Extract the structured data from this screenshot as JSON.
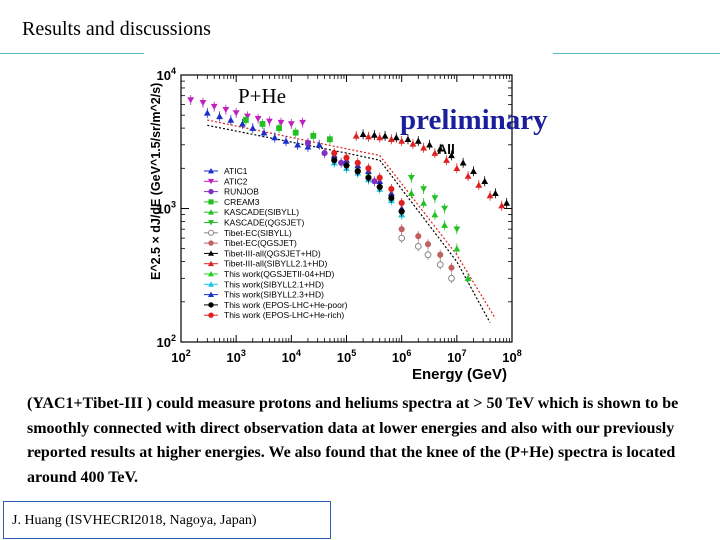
{
  "slide": {
    "title": "Results and discussions",
    "body": "(YAC1+Tibet-III ) could measure protons and heliums spectra at > 50 TeV which is shown to be smoothly connected with direct observation data at lower energies and also with our previously reported results at higher energies. We also found that the knee of the (P+He) spectra is located around 400 TeV.",
    "footer": "J. Huang (ISVHECRI2018, Nagoya, Japan)",
    "overlay_left": "P+He",
    "overlay_right": "preliminary"
  },
  "chart_data": {
    "type": "scatter",
    "xlabel": "Energy (GeV)",
    "ylabel": "E^2.5 × dJ/dE (GeV^1.5/sr/m^2/s)",
    "x_log": true,
    "y_log": true,
    "xlim": [
      100,
      100000000
    ],
    "ylim": [
      100,
      10000
    ],
    "xticks": [
      100,
      1000,
      10000,
      100000,
      1000000,
      10000000,
      100000000
    ],
    "xtick_labels": [
      "10^2",
      "10^3",
      "10^4",
      "10^5",
      "10^6",
      "10^7",
      "10^8"
    ],
    "yticks": [
      100,
      1000,
      10000
    ],
    "ytick_labels": [
      "10^2",
      "10^3",
      "10^4"
    ],
    "inner_label": "All",
    "legend": [
      {
        "name": "ATIC1",
        "color": "#1a2fc8",
        "marker": "triangle"
      },
      {
        "name": "ATIC2",
        "color": "#c020c0",
        "marker": "triangle-down"
      },
      {
        "name": "RUNJOB",
        "color": "#8030c0",
        "marker": "circle"
      },
      {
        "name": "CREAM3",
        "color": "#22c022",
        "marker": "square"
      },
      {
        "name": "KASCADE(SIBYLL)",
        "color": "#22c022",
        "marker": "triangle"
      },
      {
        "name": "KASCADE(QGSJET)",
        "color": "#22c022",
        "marker": "triangle-down"
      },
      {
        "name": "Tibet-EC(SIBYLL)",
        "color": "#888888",
        "marker": "circle-open"
      },
      {
        "name": "Tibet-EC(QGSJET)",
        "color": "#c06060",
        "marker": "circle"
      },
      {
        "name": "Tibet-III-all(QGSJET+HD)",
        "color": "#000000",
        "marker": "triangle"
      },
      {
        "name": "Tibet-III-all(SIBYLL2.1+HD)",
        "color": "#e02020",
        "marker": "triangle"
      },
      {
        "name": "This work(QGSJETII-04+HD)",
        "color": "#22d022",
        "marker": "triangle"
      },
      {
        "name": "This work(SIBYLL2.1+HD)",
        "color": "#20c8e8",
        "marker": "triangle"
      },
      {
        "name": "This work(SIBYLL2.3+HD)",
        "color": "#1a2fc8",
        "marker": "triangle"
      },
      {
        "name": "This work (EPOS-LHC+He-poor)",
        "color": "#000000",
        "marker": "circle"
      },
      {
        "name": "This work (EPOS-LHC+He-rich)",
        "color": "#e02020",
        "marker": "circle"
      }
    ],
    "series": [
      {
        "name": "ATIC1",
        "color": "#1a2fc8",
        "marker": "triangle",
        "x": [
          300,
          500,
          800,
          1300,
          2000,
          3200,
          5000,
          8000,
          13000,
          20000,
          32000
        ],
        "y": [
          5200,
          4900,
          4600,
          4300,
          4000,
          3700,
          3400,
          3200,
          3000,
          2900,
          3000
        ]
      },
      {
        "name": "ATIC2",
        "color": "#c020c0",
        "marker": "triangle-down",
        "x": [
          150,
          250,
          400,
          650,
          1000,
          1600,
          2500,
          4000,
          6500,
          10000,
          16000
        ],
        "y": [
          6500,
          6200,
          5800,
          5500,
          5200,
          4900,
          4700,
          4500,
          4400,
          4300,
          4400
        ]
      },
      {
        "name": "RUNJOB",
        "color": "#8030c0",
        "marker": "circle",
        "x": [
          20000,
          40000,
          80000,
          160000,
          320000
        ],
        "y": [
          3100,
          2600,
          2200,
          1900,
          1600
        ]
      },
      {
        "name": "CREAM3",
        "color": "#22c022",
        "marker": "square",
        "x": [
          1500,
          3000,
          6000,
          12000,
          25000,
          50000
        ],
        "y": [
          4600,
          4300,
          4000,
          3700,
          3500,
          3300
        ]
      },
      {
        "name": "KASCADE(SIBYLL)",
        "color": "#22c022",
        "marker": "triangle",
        "x": [
          1500000,
          2500000,
          4000000,
          6000000,
          10000000,
          16000000
        ],
        "y": [
          1300,
          1100,
          900,
          750,
          500,
          300
        ]
      },
      {
        "name": "KASCADE(QGSJET)",
        "color": "#22c022",
        "marker": "triangle-down",
        "x": [
          1500000,
          2500000,
          4000000,
          6000000,
          10000000
        ],
        "y": [
          1700,
          1400,
          1200,
          1000,
          700
        ]
      },
      {
        "name": "Tibet-EC(SIBYLL)",
        "color": "#888888",
        "marker": "circle-open",
        "x": [
          1000000,
          2000000,
          3000000,
          5000000,
          8000000
        ],
        "y": [
          600,
          520,
          450,
          380,
          300
        ]
      },
      {
        "name": "Tibet-EC(QGSJET)",
        "color": "#c06060",
        "marker": "circle",
        "x": [
          1000000,
          2000000,
          3000000,
          5000000,
          8000000
        ],
        "y": [
          700,
          620,
          540,
          450,
          360
        ]
      },
      {
        "name": "Tibet-III-all(QGSJET+HD)",
        "color": "#000000",
        "marker": "triangle",
        "x": [
          200000,
          320000,
          500000,
          800000,
          1300000,
          2000000,
          3200000,
          5000000,
          8000000,
          13000000,
          20000000,
          32000000,
          50000000,
          80000000
        ],
        "y": [
          3600,
          3550,
          3500,
          3400,
          3300,
          3200,
          3000,
          2800,
          2500,
          2200,
          1900,
          1600,
          1300,
          1100
        ]
      },
      {
        "name": "Tibet-III-all(SIBYLL2.1+HD)",
        "color": "#e02020",
        "marker": "triangle",
        "x": [
          150000,
          250000,
          400000,
          650000,
          1000000,
          1600000,
          2500000,
          4000000,
          6500000,
          10000000,
          16000000,
          25000000,
          40000000,
          65000000
        ],
        "y": [
          3500,
          3450,
          3400,
          3300,
          3200,
          3050,
          2850,
          2600,
          2300,
          2000,
          1750,
          1500,
          1250,
          1050
        ]
      },
      {
        "name": "This work(QGSJETII-04+HD)",
        "color": "#22d022",
        "marker": "triangle",
        "x": [
          60000,
          100000,
          160000,
          250000,
          400000,
          650000,
          1000000
        ],
        "y": [
          2400,
          2200,
          2000,
          1800,
          1500,
          1200,
          900
        ]
      },
      {
        "name": "This work(SIBYLL2.1+HD)",
        "color": "#20c8e8",
        "marker": "triangle",
        "x": [
          60000,
          100000,
          160000,
          250000,
          400000,
          650000,
          1000000
        ],
        "y": [
          2200,
          2000,
          1850,
          1650,
          1400,
          1150,
          900
        ]
      },
      {
        "name": "This work(SIBYLL2.3+HD)",
        "color": "#1a2fc8",
        "marker": "triangle",
        "x": [
          60000,
          100000,
          160000,
          250000,
          400000,
          650000,
          1000000
        ],
        "y": [
          2500,
          2300,
          2100,
          1900,
          1600,
          1300,
          1000
        ]
      },
      {
        "name": "This work (EPOS-LHC+He-poor)",
        "color": "#000000",
        "marker": "circle",
        "x": [
          60000,
          100000,
          160000,
          250000,
          400000,
          650000,
          1000000
        ],
        "y": [
          2300,
          2100,
          1900,
          1700,
          1450,
          1200,
          950
        ]
      },
      {
        "name": "This work (EPOS-LHC+He-rich)",
        "color": "#e02020",
        "marker": "circle",
        "x": [
          60000,
          100000,
          160000,
          250000,
          400000,
          650000,
          1000000
        ],
        "y": [
          2600,
          2400,
          2200,
          2000,
          1700,
          1400,
          1100
        ]
      }
    ],
    "fit_lines": [
      {
        "name": "fit-black-dotted",
        "color": "#000000",
        "x": [
          300,
          100000,
          400000,
          10000000,
          40000000
        ],
        "y": [
          4200,
          2600,
          2300,
          400,
          140
        ]
      },
      {
        "name": "fit-red-dotted",
        "color": "#e02020",
        "x": [
          300,
          100000,
          400000,
          10000000,
          50000000
        ],
        "y": [
          4600,
          2800,
          2500,
          450,
          150
        ]
      }
    ]
  }
}
